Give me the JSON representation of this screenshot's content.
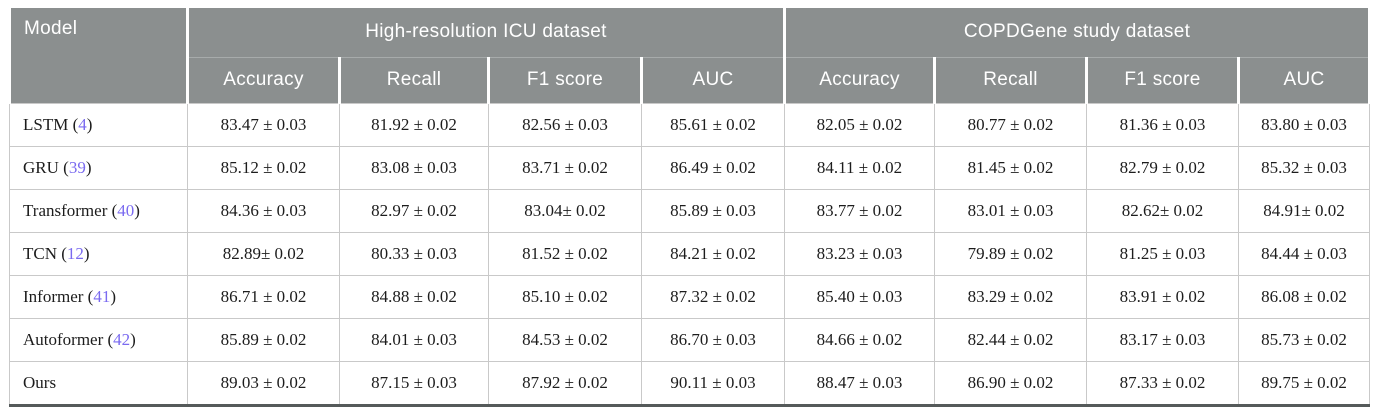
{
  "table": {
    "model_header": "Model",
    "groups": [
      {
        "label": "High-resolution ICU dataset",
        "columns": [
          "Accuracy",
          "Recall",
          "F1 score",
          "AUC"
        ]
      },
      {
        "label": "COPDGene study dataset",
        "columns": [
          "Accuracy",
          "Recall",
          "F1 score",
          "AUC"
        ]
      }
    ],
    "rows": [
      {
        "model": "LSTM",
        "citation": "4",
        "values": [
          "83.47 ± 0.03",
          "81.92 ± 0.02",
          "82.56 ± 0.03",
          "85.61 ± 0.02",
          "82.05 ± 0.02",
          "80.77 ± 0.02",
          "81.36 ± 0.03",
          "83.80 ± 0.03"
        ]
      },
      {
        "model": "GRU",
        "citation": "39",
        "values": [
          "85.12 ± 0.02",
          "83.08 ± 0.03",
          "83.71 ± 0.02",
          "86.49 ± 0.02",
          "84.11 ± 0.02",
          "81.45 ± 0.02",
          "82.79 ± 0.02",
          "85.32 ± 0.03"
        ]
      },
      {
        "model": "Transformer",
        "citation": "40",
        "values": [
          "84.36 ± 0.03",
          "82.97 ± 0.02",
          "83.04± 0.02",
          "85.89 ± 0.03",
          "83.77 ± 0.02",
          "83.01 ± 0.03",
          "82.62± 0.02",
          "84.91± 0.02"
        ]
      },
      {
        "model": "TCN",
        "citation": "12",
        "values": [
          "82.89± 0.02",
          "80.33 ± 0.03",
          "81.52 ± 0.02",
          "84.21 ± 0.02",
          "83.23 ± 0.03",
          "79.89 ± 0.02",
          "81.25 ± 0.03",
          "84.44 ± 0.03"
        ]
      },
      {
        "model": "Informer",
        "citation": "41",
        "values": [
          "86.71 ± 0.02",
          "84.88 ± 0.02",
          "85.10 ± 0.02",
          "87.32 ± 0.02",
          "85.40 ± 0.03",
          "83.29 ± 0.02",
          "83.91 ± 0.02",
          "86.08 ± 0.02"
        ]
      },
      {
        "model": "Autoformer",
        "citation": "42",
        "values": [
          "85.89 ± 0.02",
          "84.01 ± 0.03",
          "84.53 ± 0.02",
          "86.70 ± 0.03",
          "84.66 ± 0.02",
          "82.44 ± 0.02",
          "83.17 ± 0.03",
          "85.73 ± 0.02"
        ]
      },
      {
        "model": "Ours",
        "citation": null,
        "values": [
          "89.03 ± 0.02",
          "87.15 ± 0.03",
          "87.92 ± 0.02",
          "90.11 ± 0.03",
          "88.47 ± 0.03",
          "86.90 ± 0.02",
          "87.33 ± 0.02",
          "89.75 ± 0.02"
        ]
      }
    ]
  },
  "colors": {
    "header_bg": "#8b8f8f",
    "citation": "#7a6af0",
    "bottom_border": "#555a5a"
  }
}
